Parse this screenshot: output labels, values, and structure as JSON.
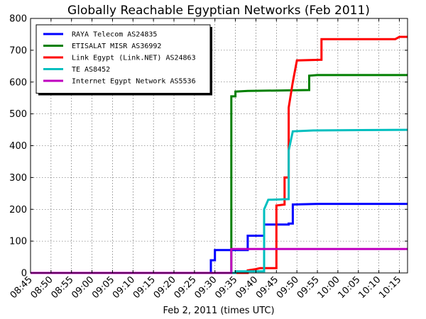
{
  "chart_data": {
    "type": "line",
    "title": "Globally Reachable Egyptian Networks (Feb 2011)",
    "xlabel": "Feb 2, 2011 (times UTC)",
    "ylabel": "",
    "x_unit": "time of day (HH:MM UTC)",
    "xlim": [
      "08:45",
      "10:17"
    ],
    "ylim": [
      0,
      800
    ],
    "yticks": [
      0,
      100,
      200,
      300,
      400,
      500,
      600,
      700,
      800
    ],
    "xticks": [
      "08:45",
      "08:50",
      "08:55",
      "09:00",
      "09:05",
      "09:10",
      "09:15",
      "09:20",
      "09:25",
      "09:30",
      "09:35",
      "09:40",
      "09:45",
      "09:50",
      "09:55",
      "10:00",
      "10:05",
      "10:10",
      "10:15"
    ],
    "grid": true,
    "legend_position": "top-left",
    "series": [
      {
        "name": "RAYA Telecom AS24835",
        "color": "#0000ff",
        "points": [
          [
            "08:45",
            0
          ],
          [
            "09:29",
            0
          ],
          [
            "09:29",
            40
          ],
          [
            "09:30",
            40
          ],
          [
            "09:30",
            72
          ],
          [
            "09:38",
            72
          ],
          [
            "09:38",
            117
          ],
          [
            "09:42",
            117
          ],
          [
            "09:42",
            152
          ],
          [
            "09:48",
            152
          ],
          [
            "09:48",
            155
          ],
          [
            "09:49",
            155
          ],
          [
            "09:49",
            215
          ],
          [
            "09:55",
            217
          ],
          [
            "10:17",
            217
          ]
        ]
      },
      {
        "name": "ETISALAT MISR AS36992",
        "color": "#007f00",
        "points": [
          [
            "08:45",
            0
          ],
          [
            "09:34",
            0
          ],
          [
            "09:34",
            555
          ],
          [
            "09:35",
            555
          ],
          [
            "09:35",
            570
          ],
          [
            "09:38",
            572
          ],
          [
            "09:53",
            575
          ],
          [
            "09:53",
            620
          ],
          [
            "09:55",
            622
          ],
          [
            "10:17",
            622
          ]
        ]
      },
      {
        "name": "Link Egypt (Link.NET) AS24863",
        "color": "#ff0000",
        "points": [
          [
            "08:45",
            0
          ],
          [
            "09:38",
            0
          ],
          [
            "09:38",
            8
          ],
          [
            "09:40",
            12
          ],
          [
            "09:41",
            15
          ],
          [
            "09:45",
            15
          ],
          [
            "09:45",
            212
          ],
          [
            "09:47",
            215
          ],
          [
            "09:47",
            300
          ],
          [
            "09:48",
            300
          ],
          [
            "09:48",
            520
          ],
          [
            "09:49",
            600
          ],
          [
            "09:50",
            668
          ],
          [
            "09:56",
            670
          ],
          [
            "09:56",
            735
          ],
          [
            "10:14",
            735
          ],
          [
            "10:15",
            742
          ],
          [
            "10:17",
            742
          ]
        ]
      },
      {
        "name": "TE AS8452",
        "color": "#00bfbf",
        "points": [
          [
            "08:45",
            0
          ],
          [
            "09:35",
            0
          ],
          [
            "09:35",
            5
          ],
          [
            "09:42",
            5
          ],
          [
            "09:42",
            200
          ],
          [
            "09:43",
            230
          ],
          [
            "09:48",
            232
          ],
          [
            "09:48",
            385
          ],
          [
            "09:49",
            445
          ],
          [
            "09:54",
            448
          ],
          [
            "10:17",
            450
          ]
        ]
      },
      {
        "name": "Internet Egypt Network AS5536",
        "color": "#bf00bf",
        "points": [
          [
            "08:45",
            0
          ],
          [
            "09:34",
            0
          ],
          [
            "09:34",
            75
          ],
          [
            "10:17",
            75
          ]
        ]
      }
    ]
  }
}
